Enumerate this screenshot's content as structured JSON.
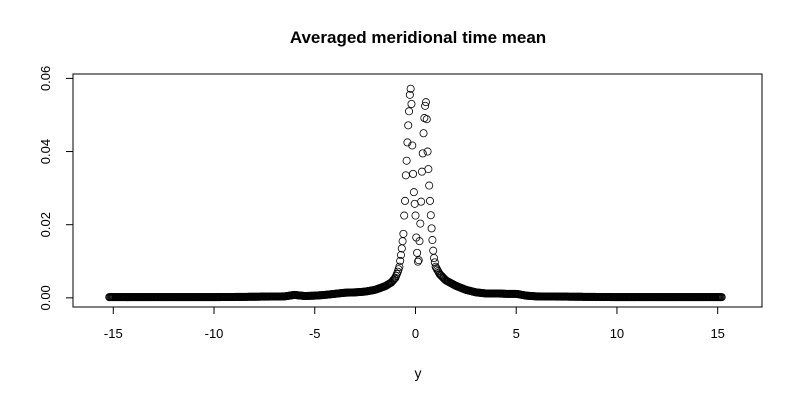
{
  "chart_data": {
    "type": "scatter",
    "title": "Averaged meridional time mean",
    "xlabel": "y",
    "ylabel": "",
    "xlim": [
      -17,
      17.2
    ],
    "ylim": [
      -0.0025,
      0.0612
    ],
    "x_ticks": [
      -15,
      -10,
      -5,
      0,
      5,
      10,
      15
    ],
    "x_tick_labels": [
      "-15",
      "-10",
      "-5",
      "0",
      "5",
      "10",
      "15"
    ],
    "y_ticks": [
      0.0,
      0.02,
      0.04,
      0.06
    ],
    "y_tick_labels": [
      "0.00",
      "0.02",
      "0.04",
      "0.06"
    ],
    "grid": false,
    "legend": "none",
    "marker": "open-circle",
    "colors": {
      "marker": "#000000",
      "axis": "#000000",
      "background": "#ffffff"
    },
    "profile_description_points": {
      "x": [
        -15.2,
        -12,
        -10,
        -8,
        -6.5,
        -6.0,
        -5.5,
        -5,
        -4.5,
        -4,
        -3.5,
        -3,
        -2.5,
        -2,
        -1.5,
        -1.2,
        -1.0,
        -0.9,
        -0.8,
        -0.75,
        -0.7,
        -0.65,
        -0.6,
        -0.58,
        -0.55,
        -0.52,
        -0.5,
        -0.48,
        -0.45,
        -0.42,
        -0.4,
        -0.38,
        -0.35,
        -0.32,
        -0.3,
        -0.28,
        -0.25,
        -0.22,
        -0.2,
        -0.18,
        -0.15,
        -0.1,
        0,
        0.05,
        0.1,
        0.15,
        0.2,
        0.25,
        0.3,
        0.32,
        0.35,
        0.38,
        0.4,
        0.42,
        0.45,
        0.48,
        0.5,
        0.52,
        0.55,
        0.58,
        0.6,
        0.65,
        0.7,
        0.75,
        0.8,
        0.85,
        0.9,
        1.0,
        1.2,
        1.5,
        2,
        2.5,
        3,
        3.5,
        4,
        4.5,
        5,
        5.5,
        6,
        8,
        10,
        12,
        15.2
      ],
      "y": [
        0.0002,
        0.0002,
        0.0002,
        0.0003,
        0.0004,
        0.0008,
        0.0005,
        0.0006,
        0.0008,
        0.0011,
        0.0014,
        0.0015,
        0.0017,
        0.0022,
        0.0032,
        0.0042,
        0.0055,
        0.0068,
        0.0085,
        0.0105,
        0.0125,
        0.015,
        0.0175,
        0.0205,
        0.0235,
        0.0265,
        0.0305,
        0.0335,
        0.0365,
        0.0395,
        0.0425,
        0.0455,
        0.048,
        0.051,
        0.0535,
        0.0555,
        0.0575,
        0.0565,
        0.053,
        0.047,
        0.039,
        0.0305,
        0.0225,
        0.015,
        0.0105,
        0.009,
        0.0155,
        0.0215,
        0.0295,
        0.0345,
        0.038,
        0.0425,
        0.045,
        0.0475,
        0.05,
        0.0525,
        0.0545,
        0.0535,
        0.0505,
        0.0455,
        0.04,
        0.034,
        0.0285,
        0.0235,
        0.019,
        0.015,
        0.0115,
        0.0085,
        0.0065,
        0.0048,
        0.0033,
        0.0022,
        0.0015,
        0.0012,
        0.0012,
        0.0011,
        0.0011,
        0.0006,
        0.0004,
        0.0003,
        0.0002,
        0.0002,
        0.0002
      ]
    }
  }
}
